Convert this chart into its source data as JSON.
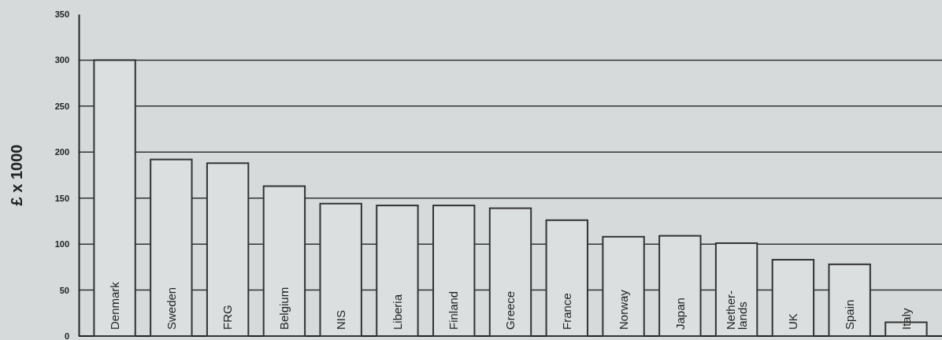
{
  "chart_data": {
    "type": "bar",
    "ylabel": "£ x 1000",
    "categories": [
      "Denmark",
      "Sweden",
      "FRG",
      "Belgium",
      "NIS",
      "Liberia",
      "Finland",
      "Greece",
      "France",
      "Norway",
      "Japan",
      "Nether-\nlands",
      "UK",
      "Spain",
      "Italy"
    ],
    "values": [
      300,
      192,
      188,
      163,
      144,
      142,
      142,
      139,
      126,
      108,
      109,
      101,
      83,
      78,
      15
    ],
    "color": "#dcdfdf",
    "ylim": [
      0,
      350
    ],
    "yticks": [
      0,
      50,
      100,
      150,
      200,
      250,
      300,
      350
    ],
    "grid": "y"
  }
}
